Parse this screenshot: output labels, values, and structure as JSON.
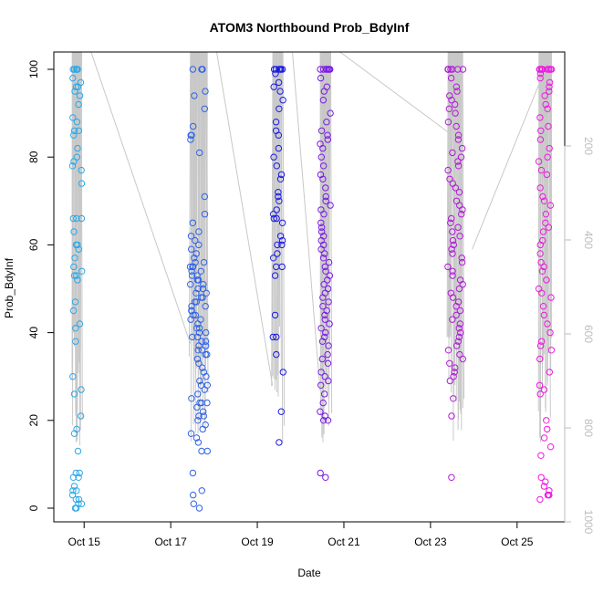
{
  "chart_data": {
    "type": "scatter",
    "title": "ATOM3 Northbound Prob_BdyInf",
    "xlabel": "Date",
    "ylabel": "Prob_BdyInf",
    "x_ticks": [
      {
        "t": 15,
        "label": "Oct 15"
      },
      {
        "t": 17,
        "label": "Oct 17"
      },
      {
        "t": 19,
        "label": "Oct 19"
      },
      {
        "t": 21,
        "label": "Oct 21"
      },
      {
        "t": 23,
        "label": "Oct 23"
      },
      {
        "t": 25,
        "label": "Oct 25"
      }
    ],
    "xlim": [
      14.3,
      26.1
    ],
    "ylim": [
      0,
      100
    ],
    "y_ticks": [
      0,
      20,
      40,
      60,
      80,
      100
    ],
    "secondary_axis": {
      "side": "right",
      "ticks": [
        200,
        400,
        600,
        800,
        1000
      ],
      "range_reversed": [
        0,
        1000
      ],
      "color": "#bdbdbd"
    },
    "grid": false,
    "marker": "open-circle",
    "color_gradient": [
      "#2aa8e8",
      "#1a1af0",
      "#8a1ae6",
      "#ff00cc"
    ],
    "trace_color": "#c8c8c8",
    "clusters": [
      {
        "t0": 14.72,
        "t1": 14.95,
        "color": "#2aa8e8",
        "y": [
          100,
          100,
          100,
          100,
          100,
          100,
          98,
          97,
          96,
          96,
          95,
          94,
          92,
          89,
          88,
          86,
          86,
          85,
          82,
          80,
          79,
          78,
          77,
          74,
          66,
          66,
          66,
          63,
          60,
          60,
          59,
          57,
          55,
          54,
          53,
          53,
          52,
          47,
          45,
          42,
          41,
          38,
          30,
          27,
          26,
          21,
          18,
          17,
          13,
          8,
          8,
          7,
          7,
          5,
          4,
          4,
          3,
          2,
          2,
          1,
          1,
          0,
          0
        ]
      },
      {
        "t0": 17.45,
        "t1": 17.85,
        "color": "#2f63e8",
        "y": [
          100,
          100,
          100,
          100,
          95,
          94,
          91,
          87,
          85,
          85,
          84,
          81,
          71,
          67,
          65,
          63,
          62,
          61,
          60,
          59,
          58,
          57,
          56,
          56,
          55,
          55,
          55,
          54,
          54,
          53,
          53,
          52,
          52,
          51,
          51,
          50,
          50,
          49,
          49,
          48,
          48,
          47,
          47,
          46,
          46,
          45,
          45,
          44,
          44,
          43,
          43,
          42,
          41,
          41,
          40,
          40,
          39,
          39,
          38,
          38,
          37,
          37,
          36,
          36,
          35,
          35,
          34,
          33,
          32,
          31,
          30,
          29,
          28,
          28,
          27,
          26,
          25,
          24,
          24,
          24,
          23,
          22,
          21,
          21,
          20,
          19,
          18,
          17,
          16,
          15,
          13,
          13,
          8,
          4,
          3,
          1,
          0
        ]
      },
      {
        "t0": 19.35,
        "t1": 19.6,
        "color": "#1a1ae6",
        "y": [
          100,
          100,
          100,
          100,
          100,
          100,
          99,
          97,
          96,
          95,
          93,
          91,
          88,
          86,
          85,
          82,
          80,
          78,
          76,
          75,
          72,
          71,
          70,
          68,
          67,
          66,
          66,
          65,
          62,
          61,
          60,
          60,
          58,
          57,
          55,
          55,
          53,
          44,
          39,
          39,
          35,
          31,
          22,
          15
        ]
      },
      {
        "t0": 20.45,
        "t1": 20.7,
        "color": "#7a1ae6",
        "y": [
          100,
          100,
          100,
          100,
          100,
          100,
          100,
          98,
          96,
          95,
          93,
          90,
          88,
          86,
          85,
          84,
          83,
          82,
          80,
          78,
          76,
          75,
          73,
          71,
          70,
          69,
          68,
          67,
          65,
          64,
          63,
          62,
          61,
          60,
          59,
          58,
          57,
          56,
          55,
          54,
          53,
          52,
          51,
          50,
          49,
          48,
          47,
          46,
          45,
          44,
          43,
          42,
          41,
          40,
          39,
          38,
          37,
          35,
          34,
          33,
          31,
          30,
          29,
          28,
          26,
          24,
          22,
          21,
          20,
          20,
          8,
          7
        ]
      },
      {
        "t0": 23.4,
        "t1": 23.75,
        "color": "#b01ad6",
        "y": [
          100,
          100,
          100,
          100,
          100,
          100,
          100,
          100,
          98,
          96,
          95,
          94,
          93,
          92,
          91,
          90,
          88,
          87,
          85,
          84,
          82,
          81,
          80,
          79,
          78,
          77,
          75,
          74,
          73,
          72,
          70,
          69,
          68,
          67,
          66,
          65,
          64,
          63,
          62,
          61,
          60,
          59,
          58,
          57,
          56,
          55,
          54,
          53,
          52,
          51,
          50,
          49,
          48,
          47,
          46,
          45,
          44,
          43,
          42,
          41,
          40,
          39,
          38,
          37,
          36,
          35,
          34,
          33,
          32,
          31,
          30,
          29,
          25,
          21,
          7
        ]
      },
      {
        "t0": 25.5,
        "t1": 25.8,
        "color": "#ee1ae0",
        "y": [
          100,
          100,
          100,
          100,
          100,
          100,
          100,
          100,
          100,
          100,
          99,
          98,
          97,
          96,
          95,
          94,
          92,
          91,
          89,
          87,
          86,
          84,
          82,
          80,
          79,
          77,
          76,
          73,
          71,
          70,
          69,
          67,
          65,
          64,
          63,
          61,
          60,
          58,
          56,
          55,
          54,
          52,
          50,
          49,
          48,
          46,
          44,
          42,
          40,
          38,
          37,
          36,
          34,
          31,
          28,
          27,
          26,
          20,
          18,
          16,
          14,
          12,
          7,
          6,
          5,
          4,
          3,
          3,
          3,
          2
        ]
      }
    ]
  }
}
